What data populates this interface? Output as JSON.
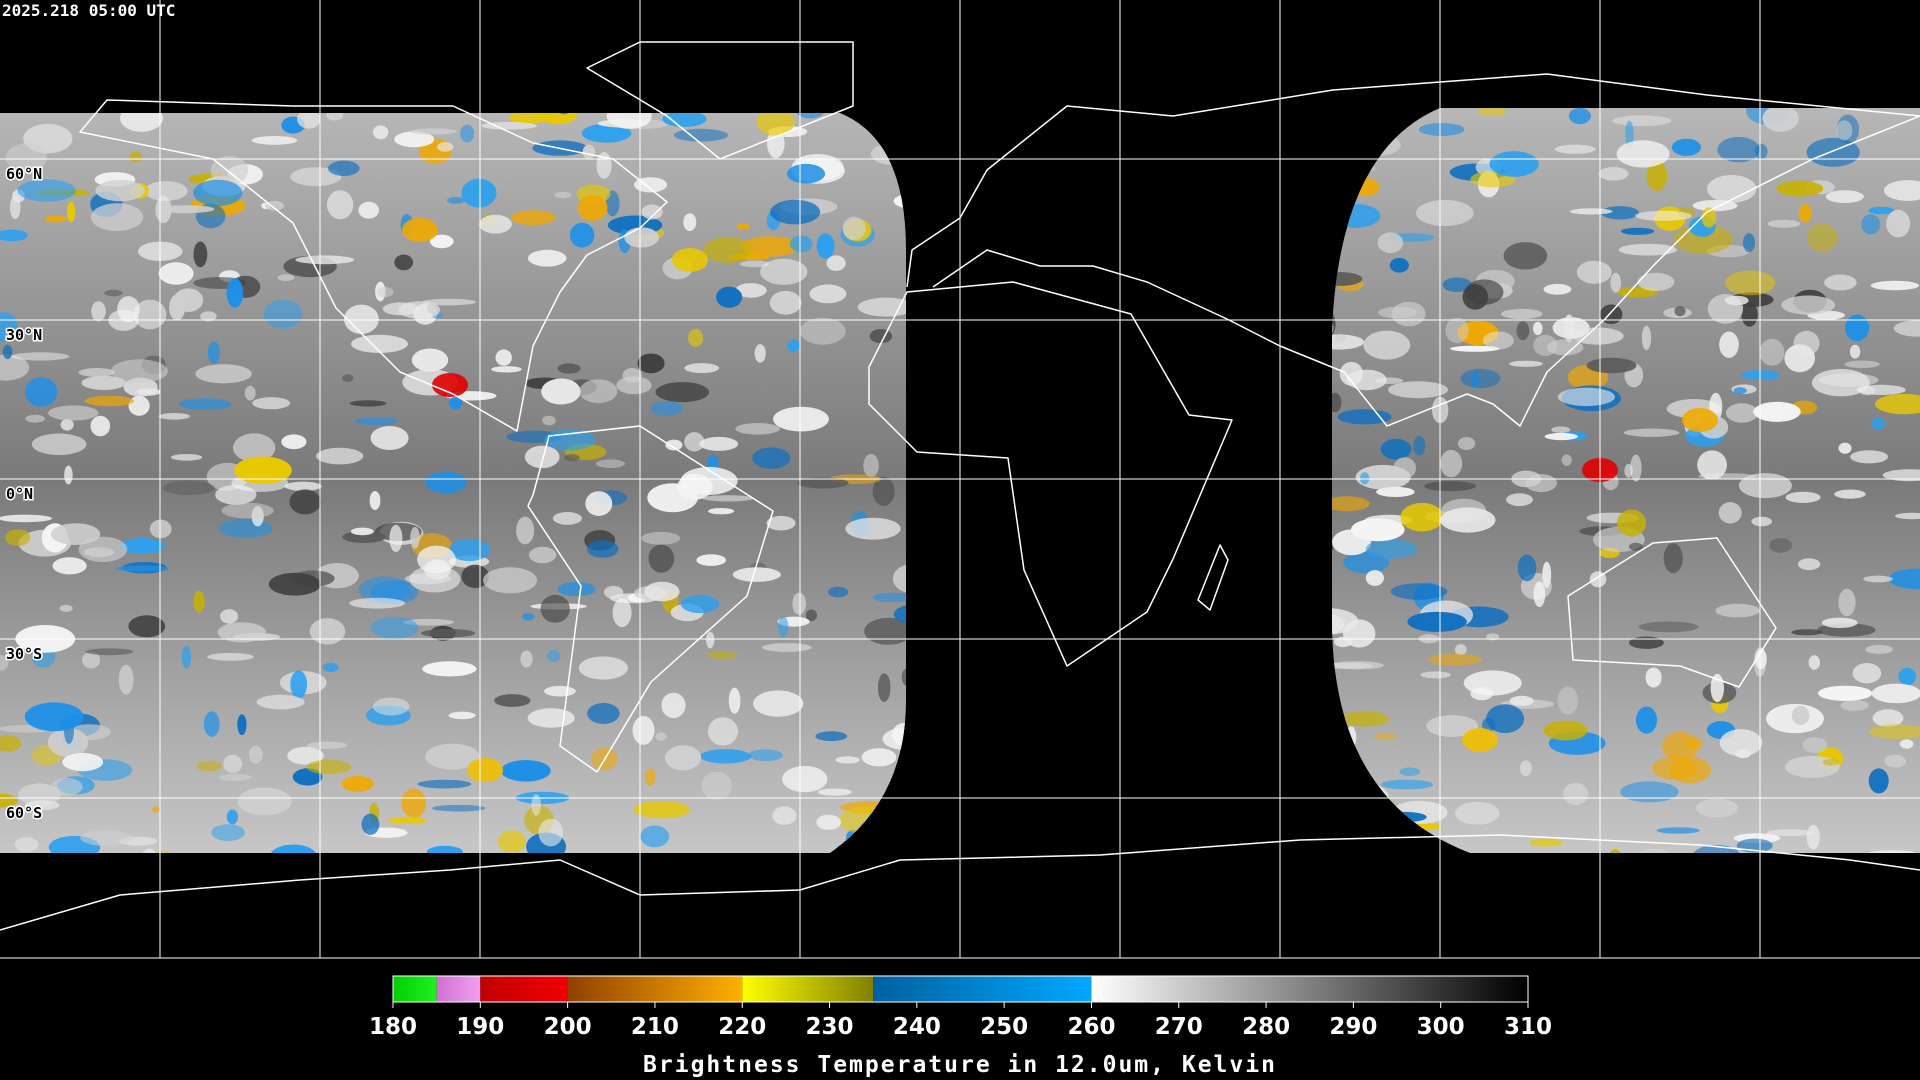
{
  "header": {
    "title": "2025.218 05:00 UTC"
  },
  "map": {
    "latitude_labels": [
      "60°N",
      "30°N",
      "0°N",
      "30°S",
      "60°S"
    ]
  },
  "colorbar": {
    "ticks": [
      180,
      190,
      200,
      210,
      220,
      230,
      240,
      250,
      260,
      270,
      280,
      290,
      300,
      310
    ],
    "segments": [
      {
        "from": 180,
        "to": 185,
        "start": "#00d000",
        "end": "#20f020"
      },
      {
        "from": 185,
        "to": 190,
        "start": "#d070d0",
        "end": "#f0a0f0"
      },
      {
        "from": 190,
        "to": 200,
        "start": "#c00000",
        "end": "#f00000"
      },
      {
        "from": 200,
        "to": 220,
        "start": "#904000",
        "end": "#ffb000"
      },
      {
        "from": 220,
        "to": 235,
        "start": "#ffff00",
        "end": "#808000"
      },
      {
        "from": 235,
        "to": 260,
        "start": "#0060a0",
        "end": "#00a8ff"
      },
      {
        "from": 260,
        "to": 310,
        "start": "#ffffff",
        "end": "#000000"
      }
    ],
    "label": "Brightness Temperature in 12.0um, Kelvin"
  }
}
